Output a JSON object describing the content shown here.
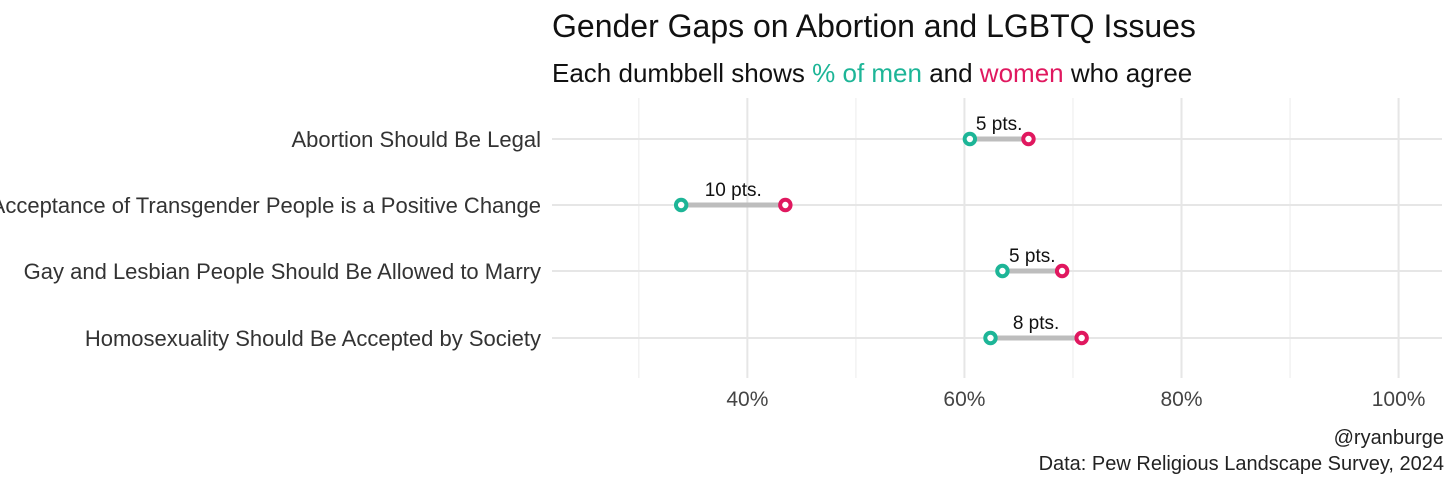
{
  "chart_data": {
    "type": "dumbbell",
    "title": "Gender Gaps on Abortion and LGBTQ Issues",
    "subtitle": {
      "prefix": "Each dumbbell shows ",
      "men_label": "% of men",
      "middle": " and ",
      "women_label": "women",
      "suffix": " who agree"
    },
    "categories": [
      "Abortion Should Be Legal",
      "Acceptance of Transgender People is a Positive Change",
      "Gay and Lesbian People Should Be Allowed to Marry",
      "Homosexuality Should Be Accepted by Society"
    ],
    "series": [
      {
        "name": "Men",
        "values": [
          60.5,
          33.9,
          63.5,
          62.4
        ]
      },
      {
        "name": "Women",
        "values": [
          65.9,
          43.5,
          69.0,
          70.8
        ]
      }
    ],
    "gap_labels": [
      "5 pts.",
      "10 pts.",
      "5 pts.",
      "8 pts."
    ],
    "x_ticks": [
      40,
      60,
      80,
      100
    ],
    "x_tick_labels": [
      "40%",
      "60%",
      "80%",
      "100%"
    ],
    "xlim": [
      22,
      104
    ],
    "grid": true,
    "colors": {
      "men": "#1db597",
      "women": "#e0185f",
      "connector": "#bdbdbd"
    },
    "caption": [
      "@ryanburge",
      "Data: Pew Religious Landscape Survey, 2024"
    ]
  }
}
